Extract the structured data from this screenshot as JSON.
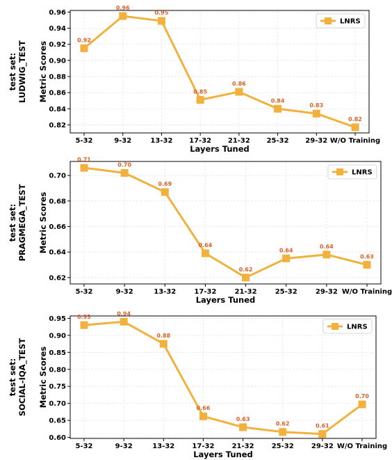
{
  "colors": {
    "series": "#f2b13c",
    "data_label": "#d9622b",
    "grid": "#e6e6e6"
  },
  "chart_data": [
    {
      "type": "line",
      "row_label": [
        "test set:",
        "LUDWIG_TEST"
      ],
      "xlabel": "Layers Tuned",
      "ylabel": "Metric Scores",
      "categories": [
        "5-32",
        "9-32",
        "13-32",
        "17-32",
        "21-32",
        "25-32",
        "29-32",
        "W/O Training"
      ],
      "series": [
        {
          "name": "LNRS",
          "values": [
            0.915,
            0.955,
            0.949,
            0.851,
            0.861,
            0.84,
            0.834,
            0.817
          ],
          "labels": [
            "0.92",
            "0.96",
            "0.95",
            "0.85",
            "0.86",
            "0.84",
            "0.83",
            "0.82"
          ]
        }
      ],
      "ylim": [
        0.81,
        0.962
      ],
      "yticks": [
        0.82,
        0.84,
        0.86,
        0.88,
        0.9,
        0.92,
        0.94,
        0.96
      ],
      "ytick_labels": [
        "0.82",
        "0.84",
        "0.86",
        "0.88",
        "0.90",
        "0.92",
        "0.94",
        "0.96"
      ],
      "grid": true,
      "legend": "top-right"
    },
    {
      "type": "line",
      "row_label": [
        "test set:",
        "PRAGMEGA_TEST"
      ],
      "xlabel": "Layers Tuned",
      "ylabel": "Metric Scores",
      "categories": [
        "5-32",
        "9-32",
        "13-32",
        "17-32",
        "21-32",
        "25-32",
        "29-32",
        "W/O Training"
      ],
      "series": [
        {
          "name": "LNRS",
          "values": [
            0.706,
            0.702,
            0.687,
            0.639,
            0.62,
            0.635,
            0.638,
            0.63
          ],
          "labels": [
            "0.71",
            "0.70",
            "0.69",
            "0.64",
            "0.62",
            "0.64",
            "0.64",
            "0.63"
          ]
        }
      ],
      "ylim": [
        0.615,
        0.711
      ],
      "yticks": [
        0.62,
        0.64,
        0.66,
        0.68,
        0.7
      ],
      "ytick_labels": [
        "0.62",
        "0.64",
        "0.66",
        "0.68",
        "0.70"
      ],
      "grid": true,
      "legend": "top-right"
    },
    {
      "type": "line",
      "row_label": [
        "test set:",
        "SOCIAL-IQA_TEST"
      ],
      "xlabel": "Layers Tuned",
      "ylabel": "Metric Scores",
      "categories": [
        "5-32",
        "9-32",
        "13-32",
        "17-32",
        "21-32",
        "25-32",
        "29-32",
        "W/O Training"
      ],
      "series": [
        {
          "name": "LNRS",
          "values": [
            0.93,
            0.94,
            0.875,
            0.662,
            0.63,
            0.616,
            0.61,
            0.697
          ],
          "labels": [
            "0.93",
            "0.94",
            "0.88",
            "0.66",
            "0.63",
            "0.62",
            "0.61",
            "0.70"
          ]
        }
      ],
      "ylim": [
        0.597,
        0.957
      ],
      "yticks": [
        0.6,
        0.65,
        0.7,
        0.75,
        0.8,
        0.85,
        0.9,
        0.95
      ],
      "ytick_labels": [
        "0.60",
        "0.65",
        "0.70",
        "0.75",
        "0.80",
        "0.85",
        "0.90",
        "0.95"
      ],
      "grid": true,
      "legend": "top-right"
    }
  ]
}
